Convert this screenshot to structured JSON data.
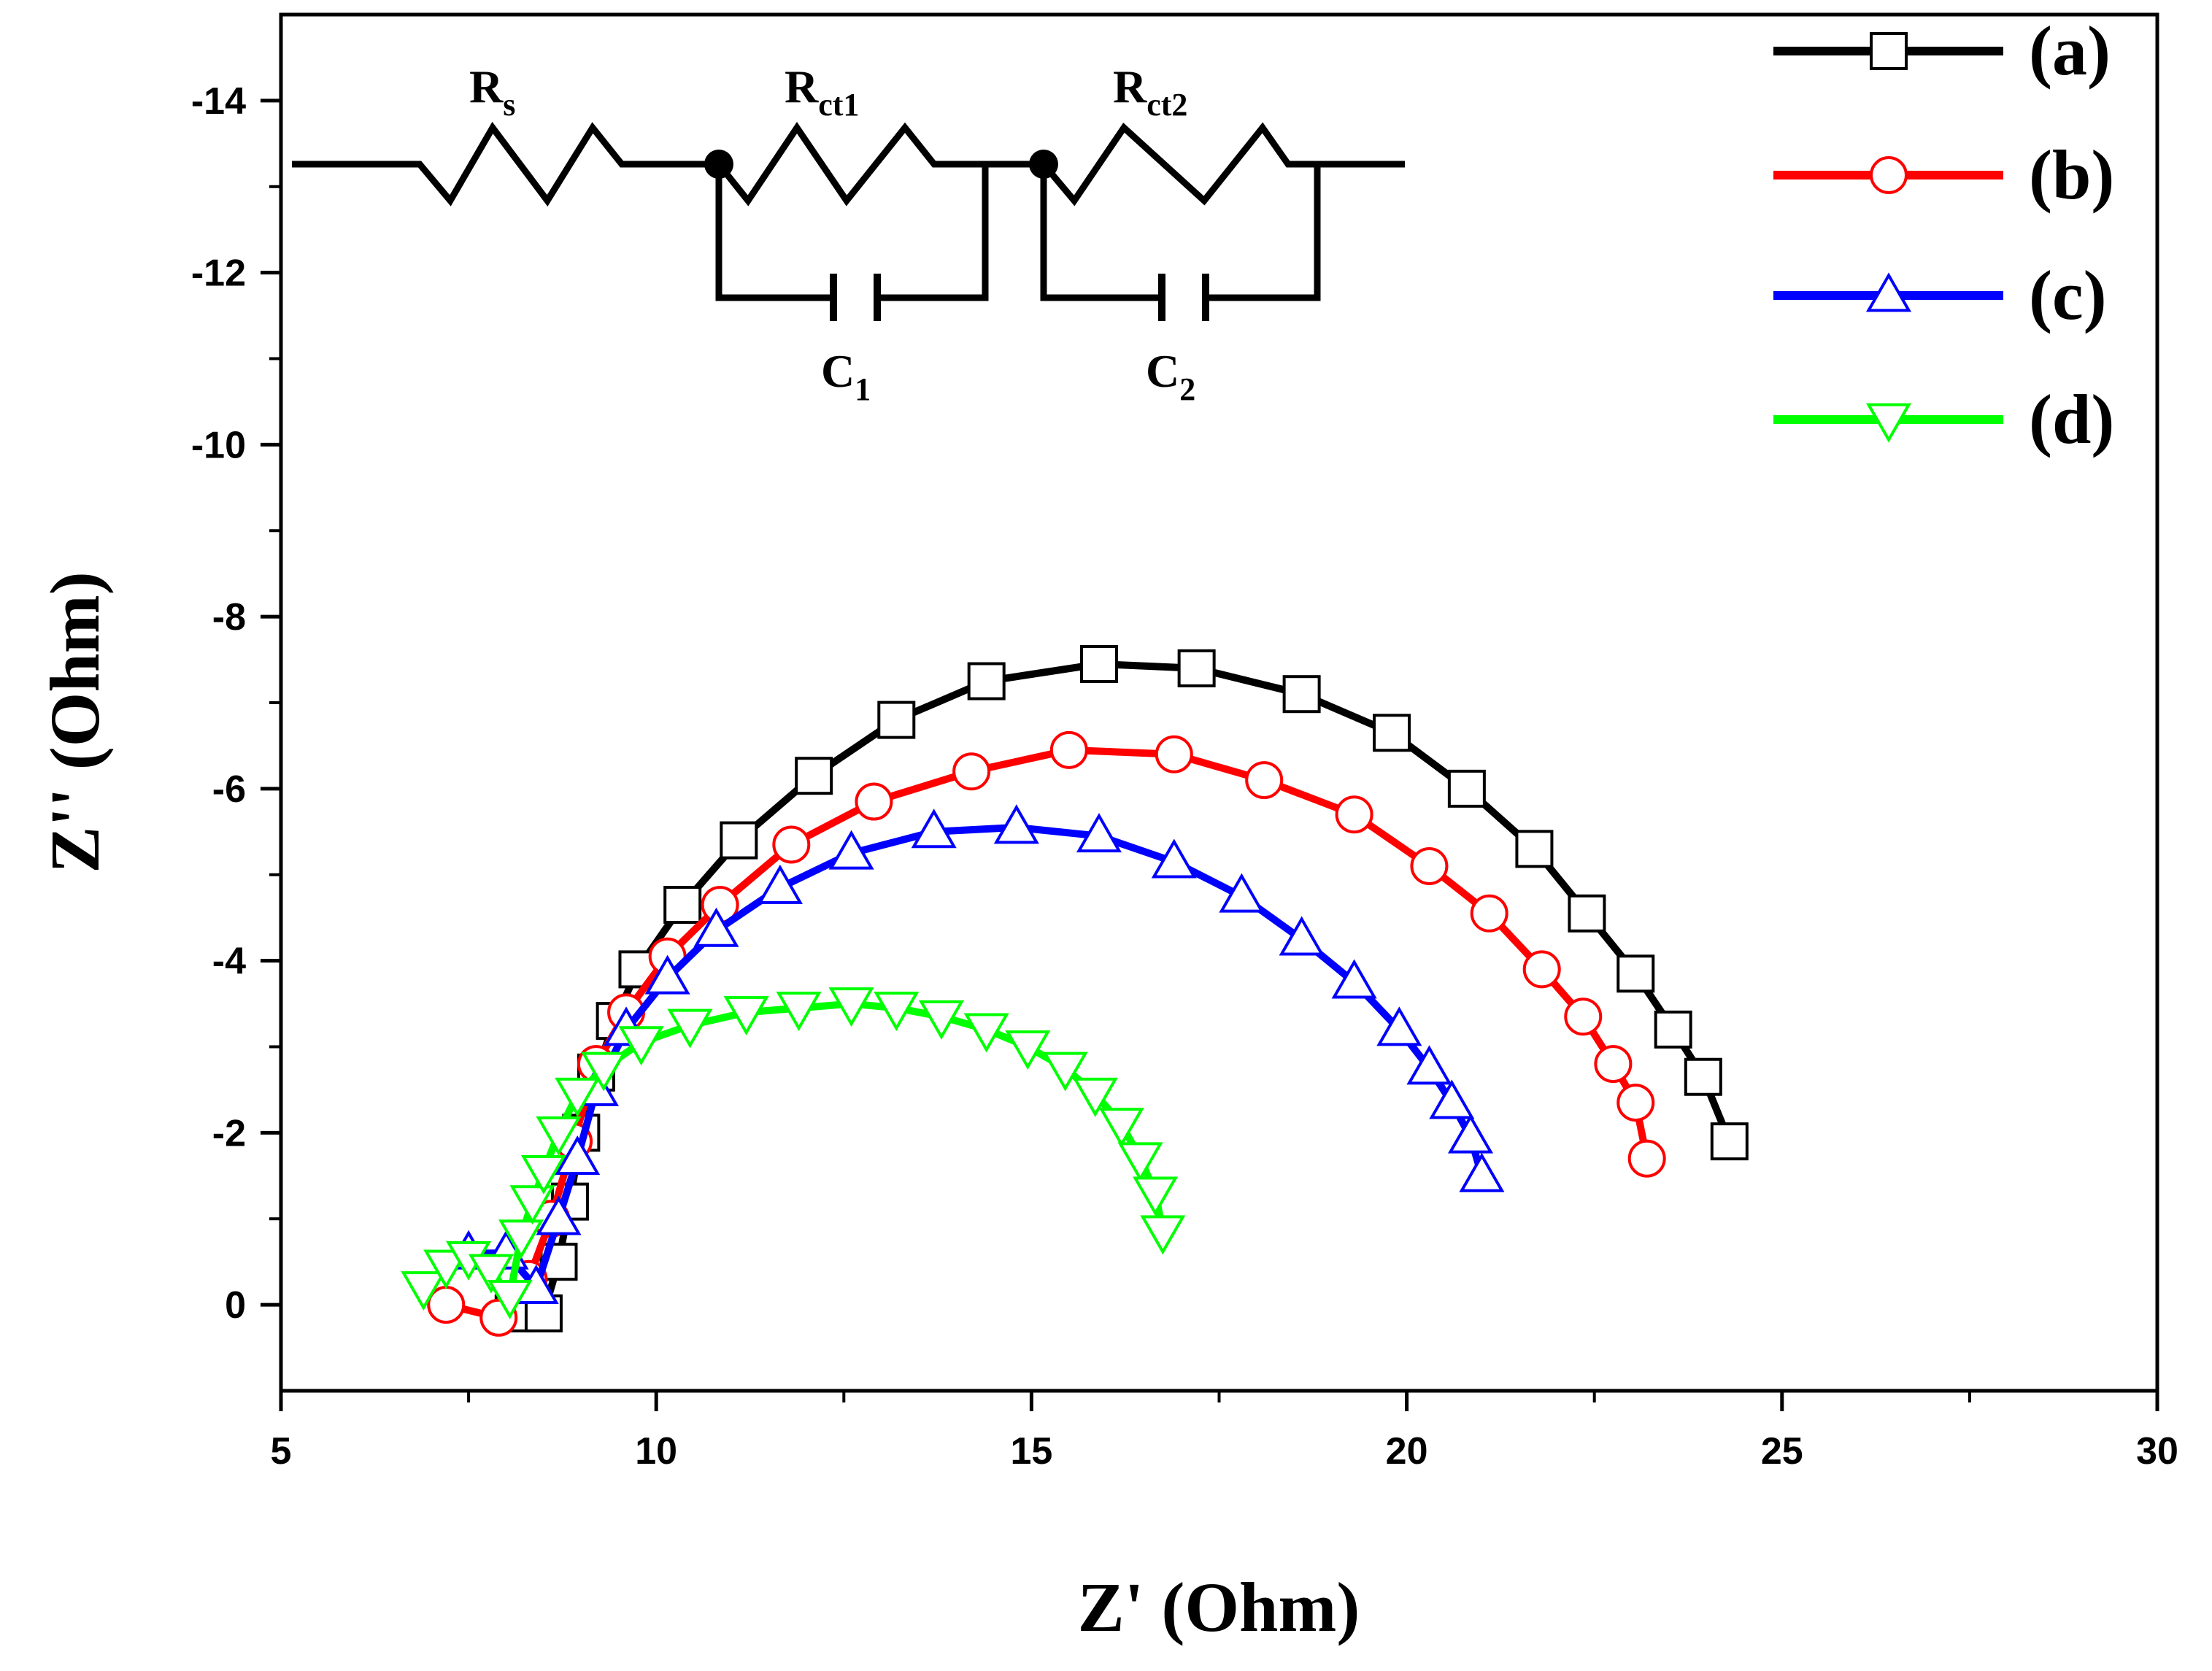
{
  "chart_data": {
    "type": "scatter",
    "title": "",
    "xlabel": "Z' (Ohm)",
    "ylabel": "Z'' (Ohm)",
    "xlim": [
      5,
      30
    ],
    "ylim": [
      1,
      -15
    ],
    "y_inverted": true,
    "x_ticks": [
      5,
      10,
      15,
      20,
      25,
      30
    ],
    "x_tick_labels": [
      "5",
      "10",
      "15",
      "20",
      "25",
      "30"
    ],
    "y_ticks": [
      0,
      -2,
      -4,
      -6,
      -8,
      -10,
      -12,
      -14
    ],
    "y_tick_labels": [
      "0",
      "-2",
      "-4",
      "-6",
      "-8",
      "-10",
      "-12",
      "-14"
    ],
    "grid": false,
    "legend_position": "top-right",
    "series": [
      {
        "name": "(a)",
        "color": "#000000",
        "marker": "square",
        "x": [
          8.1,
          8.5,
          8.7,
          8.85,
          9.0,
          9.2,
          9.45,
          9.75,
          10.35,
          11.1,
          12.1,
          13.2,
          14.4,
          15.9,
          17.2,
          18.6,
          19.8,
          20.8,
          21.7,
          22.4,
          23.05,
          23.55,
          23.95,
          24.3
        ],
        "y": [
          0.1,
          0.1,
          -0.5,
          -1.2,
          -2.0,
          -2.7,
          -3.3,
          -3.9,
          -4.65,
          -5.4,
          -6.15,
          -6.8,
          -7.25,
          -7.45,
          -7.4,
          -7.1,
          -6.65,
          -6.0,
          -5.3,
          -4.55,
          -3.85,
          -3.2,
          -2.65,
          -1.9
        ]
      },
      {
        "name": "(b)",
        "color": "#ff0000",
        "marker": "circle",
        "x": [
          7.2,
          7.9,
          8.3,
          8.6,
          8.9,
          9.2,
          9.6,
          10.15,
          10.85,
          11.8,
          12.9,
          14.2,
          15.5,
          16.9,
          18.1,
          19.3,
          20.3,
          21.1,
          21.8,
          22.35,
          22.75,
          23.05,
          23.2
        ],
        "y": [
          0.0,
          0.15,
          -0.3,
          -1.0,
          -1.9,
          -2.8,
          -3.4,
          -4.05,
          -4.65,
          -5.35,
          -5.85,
          -6.2,
          -6.45,
          -6.4,
          -6.1,
          -5.7,
          -5.1,
          -4.55,
          -3.9,
          -3.35,
          -2.8,
          -2.35,
          -1.7
        ]
      },
      {
        "name": "(c)",
        "color": "#0000ff",
        "marker": "triangle-up",
        "x": [
          7.5,
          8.0,
          8.4,
          8.7,
          8.95,
          9.2,
          9.6,
          10.15,
          10.8,
          11.65,
          12.6,
          13.7,
          14.8,
          15.9,
          16.9,
          17.8,
          18.6,
          19.3,
          19.9,
          20.3,
          20.6,
          20.85,
          21.0
        ],
        "y": [
          -0.6,
          -0.6,
          -0.2,
          -1.0,
          -1.7,
          -2.5,
          -3.2,
          -3.8,
          -4.35,
          -4.85,
          -5.25,
          -5.5,
          -5.55,
          -5.45,
          -5.15,
          -4.75,
          -4.25,
          -3.75,
          -3.2,
          -2.75,
          -2.35,
          -1.95,
          -1.5
        ]
      },
      {
        "name": "(d)",
        "color": "#00ff00",
        "marker": "triangle-down",
        "x": [
          6.9,
          7.2,
          7.5,
          7.8,
          8.05,
          8.2,
          8.35,
          8.5,
          8.7,
          8.95,
          9.3,
          9.8,
          10.45,
          11.2,
          11.9,
          12.6,
          13.2,
          13.8,
          14.4,
          14.95,
          15.45,
          15.85,
          16.2,
          16.45,
          16.65,
          16.75
        ],
        "y": [
          -0.2,
          -0.45,
          -0.55,
          -0.4,
          -0.1,
          -0.8,
          -1.2,
          -1.55,
          -2.0,
          -2.45,
          -2.75,
          -3.05,
          -3.25,
          -3.4,
          -3.45,
          -3.5,
          -3.45,
          -3.35,
          -3.2,
          -3.0,
          -2.75,
          -2.45,
          -2.1,
          -1.7,
          -1.3,
          -0.85
        ]
      }
    ]
  },
  "circuit": {
    "rs_label": "R",
    "rs_sub": "s",
    "rct1_label": "R",
    "rct1_sub": "ct1",
    "rct2_label": "R",
    "rct2_sub": "ct2",
    "c1_label": "C",
    "c1_sub": "1",
    "c2_label": "C",
    "c2_sub": "2"
  }
}
